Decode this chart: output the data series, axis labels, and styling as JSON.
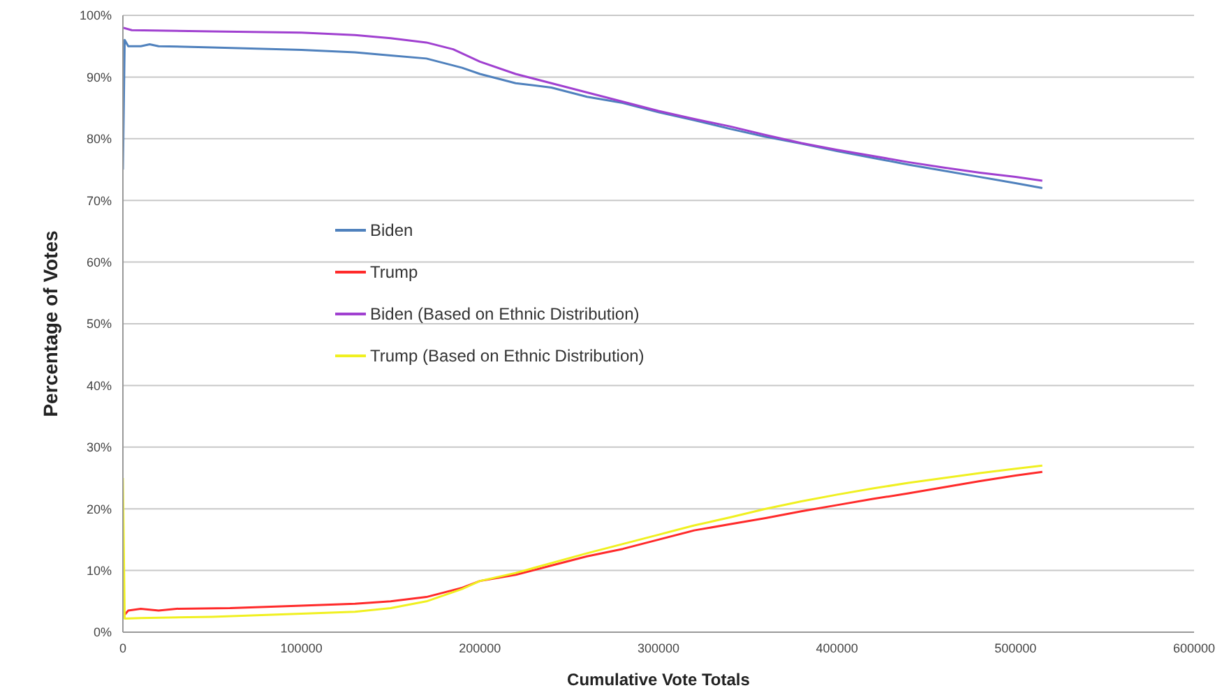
{
  "chart_data": {
    "type": "line",
    "xlabel": "Cumulative Vote Totals",
    "ylabel": "Percentage of Votes",
    "xlim": [
      0,
      600000
    ],
    "xticks": [
      0,
      100000,
      200000,
      300000,
      400000,
      500000,
      600000
    ],
    "ylim": [
      0,
      100
    ],
    "yticks": [
      {
        "value": 0,
        "label": "0%"
      },
      {
        "value": 10,
        "label": "10%"
      },
      {
        "value": 20,
        "label": "20%"
      },
      {
        "value": 30,
        "label": "30%"
      },
      {
        "value": 40,
        "label": "40%"
      },
      {
        "value": 50,
        "label": "50%"
      },
      {
        "value": 60,
        "label": "60%"
      },
      {
        "value": 70,
        "label": "70%"
      },
      {
        "value": 80,
        "label": "80%"
      },
      {
        "value": 90,
        "label": "90%"
      },
      {
        "value": 100,
        "label": "100%"
      }
    ],
    "grid": "y",
    "legend": "left",
    "marker": "none",
    "line_style": "solid",
    "series": [
      {
        "name": "Biden",
        "color": "#4f81bd",
        "x": [
          0,
          1000,
          3000,
          10000,
          15000,
          20000,
          50000,
          100000,
          130000,
          150000,
          170000,
          190000,
          200000,
          220000,
          240000,
          260000,
          280000,
          300000,
          320000,
          340000,
          360000,
          380000,
          400000,
          420000,
          440000,
          460000,
          480000,
          500000,
          515000
        ],
        "values": [
          75,
          96,
          95,
          95,
          95.3,
          95,
          94.8,
          94.4,
          94,
          93.5,
          93,
          91.5,
          90.5,
          89,
          88.3,
          86.8,
          85.8,
          84.3,
          83,
          81.6,
          80.3,
          79.2,
          78,
          76.9,
          75.8,
          74.8,
          73.8,
          72.8,
          72
        ]
      },
      {
        "name": "Trump",
        "color": "#ff2a2a",
        "x": [
          0,
          3000,
          10000,
          20000,
          30000,
          60000,
          100000,
          130000,
          150000,
          170000,
          190000,
          200000,
          220000,
          240000,
          260000,
          280000,
          300000,
          320000,
          340000,
          360000,
          380000,
          400000,
          420000,
          440000,
          460000,
          480000,
          500000,
          515000
        ],
        "values": [
          2.5,
          3.5,
          3.8,
          3.5,
          3.8,
          3.9,
          4.3,
          4.6,
          5,
          5.7,
          7.2,
          8.3,
          9.3,
          10.8,
          12.3,
          13.5,
          15,
          16.5,
          17.5,
          18.5,
          19.6,
          20.6,
          21.6,
          22.5,
          23.5,
          24.5,
          25.4,
          26
        ]
      },
      {
        "name": "Biden (Based on Ethnic Distribution)",
        "color": "#a040d0",
        "x": [
          0,
          5000,
          50000,
          100000,
          130000,
          150000,
          170000,
          185000,
          200000,
          220000,
          240000,
          260000,
          280000,
          300000,
          320000,
          340000,
          360000,
          380000,
          400000,
          420000,
          440000,
          460000,
          480000,
          500000,
          515000
        ],
        "values": [
          98,
          97.6,
          97.4,
          97.2,
          96.8,
          96.3,
          95.6,
          94.5,
          92.5,
          90.5,
          89,
          87.5,
          86,
          84.5,
          83.2,
          82,
          80.6,
          79.3,
          78.2,
          77.2,
          76.2,
          75.3,
          74.5,
          73.8,
          73.2
        ]
      },
      {
        "name": "Trump (Based on Ethnic Distribution)",
        "color": "#f0f020",
        "x": [
          0,
          1000,
          10000,
          50000,
          100000,
          130000,
          150000,
          170000,
          190000,
          200000,
          220000,
          240000,
          260000,
          280000,
          300000,
          320000,
          340000,
          360000,
          380000,
          400000,
          420000,
          440000,
          460000,
          480000,
          500000,
          515000
        ],
        "values": [
          25,
          2.2,
          2.3,
          2.5,
          3,
          3.3,
          3.9,
          5,
          7,
          8.3,
          9.6,
          11.2,
          12.8,
          14.3,
          15.8,
          17.3,
          18.6,
          20,
          21.2,
          22.3,
          23.3,
          24.2,
          25,
          25.8,
          26.5,
          27
        ]
      }
    ]
  }
}
